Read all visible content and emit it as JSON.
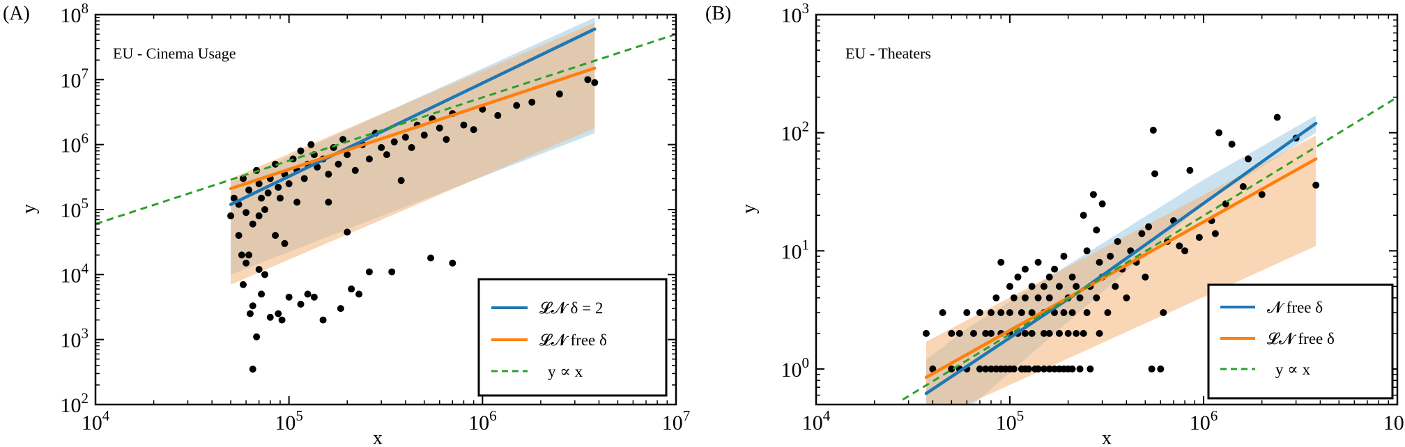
{
  "chart_data": [
    {
      "panel_label": "(A)",
      "type": "scatter",
      "annotation": "EU - Cinema Usage",
      "xlabel": "x",
      "ylabel": "y",
      "xscale": "log",
      "yscale": "log",
      "xlim": [
        10000,
        10000000
      ],
      "ylim": [
        100,
        100000000
      ],
      "xticks": [
        {
          "value": 10000,
          "base": "10",
          "exp": "4"
        },
        {
          "value": 100000,
          "base": "10",
          "exp": "5"
        },
        {
          "value": 1000000,
          "base": "10",
          "exp": "6"
        },
        {
          "value": 10000000,
          "base": "10",
          "exp": "7"
        }
      ],
      "yticks": [
        {
          "value": 100,
          "base": "10",
          "exp": "2"
        },
        {
          "value": 1000,
          "base": "10",
          "exp": "3"
        },
        {
          "value": 10000,
          "base": "10",
          "exp": "4"
        },
        {
          "value": 100000,
          "base": "10",
          "exp": "5"
        },
        {
          "value": 1000000,
          "base": "10",
          "exp": "6"
        },
        {
          "value": 10000000,
          "base": "10",
          "exp": "7"
        },
        {
          "value": 100000000,
          "base": "10",
          "exp": "8"
        }
      ],
      "legend_position": "lower-right",
      "legend": [
        {
          "label": "𝓛𝓝  δ = 2",
          "style": "solid",
          "color": "#1f77b4"
        },
        {
          "label": "𝓛𝓝 free δ",
          "style": "solid",
          "color": "#ff7f0e"
        },
        {
          "label": "y ∝ x",
          "style": "dashed",
          "color": "#2ca02c"
        }
      ],
      "colors": {
        "blue": "#1f77b4",
        "orange": "#ff7f0e",
        "green": "#2ca02c",
        "band_blue": "#9ecae1",
        "band_orange": "#f4b57a"
      },
      "lines": [
        {
          "name": "𝓛𝓝  δ = 2",
          "color": "#1f77b4",
          "dash": false,
          "x": [
            50000,
            3800000
          ],
          "y": [
            120000,
            60000000
          ]
        },
        {
          "name": "𝓛𝓝 free δ",
          "color": "#ff7f0e",
          "dash": false,
          "x": [
            50000,
            3800000
          ],
          "y": [
            210000,
            15000000
          ]
        },
        {
          "name": "y ∝ x",
          "color": "#2ca02c",
          "dash": true,
          "x": [
            10000,
            10000000
          ],
          "y": [
            60000,
            50000000
          ]
        }
      ],
      "bands": [
        {
          "color": "#9ecae1",
          "x": [
            50000,
            3800000
          ],
          "lower": [
            10000,
            1500000
          ],
          "upper": [
            260000,
            90000000
          ]
        },
        {
          "color": "#f4b57a",
          "x": [
            50000,
            3800000
          ],
          "lower": [
            7000,
            1800000
          ],
          "upper": [
            300000,
            75000000
          ]
        }
      ],
      "points": [
        [
          50000,
          80000
        ],
        [
          52000,
          150000
        ],
        [
          55000,
          120000
        ],
        [
          58000,
          300000
        ],
        [
          60000,
          90000
        ],
        [
          62000,
          200000
        ],
        [
          65000,
          60000
        ],
        [
          68000,
          400000
        ],
        [
          70000,
          250000
        ],
        [
          72000,
          150000
        ],
        [
          75000,
          100000
        ],
        [
          78000,
          180000
        ],
        [
          80000,
          300000
        ],
        [
          85000,
          500000
        ],
        [
          88000,
          220000
        ],
        [
          90000,
          150000
        ],
        [
          95000,
          350000
        ],
        [
          100000,
          250000
        ],
        [
          105000,
          600000
        ],
        [
          110000,
          400000
        ],
        [
          115000,
          800000
        ],
        [
          120000,
          300000
        ],
        [
          125000,
          500000
        ],
        [
          130000,
          1000000
        ],
        [
          135000,
          700000
        ],
        [
          140000,
          450000
        ],
        [
          150000,
          600000
        ],
        [
          160000,
          350000
        ],
        [
          170000,
          900000
        ],
        [
          180000,
          500000
        ],
        [
          190000,
          1200000
        ],
        [
          200000,
          700000
        ],
        [
          220000,
          400000
        ],
        [
          240000,
          1000000
        ],
        [
          260000,
          600000
        ],
        [
          280000,
          1500000
        ],
        [
          300000,
          900000
        ],
        [
          320000,
          700000
        ],
        [
          350000,
          1100000
        ],
        [
          380000,
          280000
        ],
        [
          400000,
          1300000
        ],
        [
          430000,
          900000
        ],
        [
          460000,
          2000000
        ],
        [
          500000,
          1400000
        ],
        [
          550000,
          2500000
        ],
        [
          600000,
          1800000
        ],
        [
          650000,
          1200000
        ],
        [
          700000,
          3000000
        ],
        [
          800000,
          2000000
        ],
        [
          900000,
          1700000
        ],
        [
          1000000,
          3500000
        ],
        [
          1200000,
          2800000
        ],
        [
          1500000,
          4000000
        ],
        [
          1800000,
          4500000
        ],
        [
          2500000,
          6000000
        ],
        [
          3500000,
          10000000
        ],
        [
          3800000,
          9000000
        ],
        [
          65000,
          350
        ],
        [
          68000,
          1100
        ],
        [
          63000,
          2500
        ],
        [
          65000,
          3300
        ],
        [
          58000,
          7000
        ],
        [
          60000,
          15000
        ],
        [
          62000,
          20000
        ],
        [
          70000,
          12000
        ],
        [
          72000,
          5000
        ],
        [
          75000,
          10000
        ],
        [
          80000,
          2200
        ],
        [
          88000,
          2500
        ],
        [
          92000,
          2000
        ],
        [
          100000,
          4500
        ],
        [
          115000,
          3500
        ],
        [
          125000,
          5000
        ],
        [
          135000,
          4500
        ],
        [
          150000,
          2000
        ],
        [
          185000,
          3000
        ],
        [
          210000,
          6000
        ],
        [
          230000,
          5000
        ],
        [
          260000,
          11000
        ],
        [
          340000,
          11000
        ],
        [
          540000,
          18000
        ],
        [
          700000,
          15000
        ],
        [
          200000,
          45000
        ],
        [
          160000,
          130000
        ],
        [
          55000,
          40000
        ],
        [
          57000,
          20000
        ],
        [
          85000,
          40000
        ],
        [
          95000,
          30000
        ],
        [
          70000,
          80000
        ],
        [
          110000,
          130000
        ]
      ]
    },
    {
      "panel_label": "(B)",
      "type": "scatter",
      "annotation": "EU - Theaters",
      "xlabel": "x",
      "ylabel": "y",
      "xscale": "log",
      "yscale": "log",
      "xlim": [
        10000,
        10000000
      ],
      "ylim": [
        0.5,
        1000
      ],
      "xticks": [
        {
          "value": 10000,
          "base": "10",
          "exp": "4"
        },
        {
          "value": 100000,
          "base": "10",
          "exp": "5"
        },
        {
          "value": 1000000,
          "base": "10",
          "exp": "6"
        },
        {
          "value": 10000000,
          "base": "10",
          "exp": "7"
        }
      ],
      "yticks": [
        {
          "value": 1,
          "base": "10",
          "exp": "0"
        },
        {
          "value": 10,
          "base": "10",
          "exp": "1"
        },
        {
          "value": 100,
          "base": "10",
          "exp": "2"
        },
        {
          "value": 1000,
          "base": "10",
          "exp": "3"
        }
      ],
      "legend_position": "lower-right",
      "legend": [
        {
          "label": "𝓝 free δ",
          "style": "solid",
          "color": "#1f77b4"
        },
        {
          "label": "𝓛𝓝 free δ",
          "style": "solid",
          "color": "#ff7f0e"
        },
        {
          "label": "y ∝ x",
          "style": "dashed",
          "color": "#2ca02c"
        }
      ],
      "colors": {
        "blue": "#1f77b4",
        "orange": "#ff7f0e",
        "green": "#2ca02c",
        "band_blue": "#9ecae1",
        "band_orange": "#f4b57a"
      },
      "lines": [
        {
          "name": "𝓝 free δ",
          "color": "#1f77b4",
          "dash": false,
          "x": [
            37000,
            250000,
            3800000
          ],
          "y": [
            0.62,
            5,
            120
          ]
        },
        {
          "name": "𝓛𝓝 free δ",
          "color": "#ff7f0e",
          "dash": false,
          "x": [
            37000,
            3800000
          ],
          "y": [
            0.85,
            60
          ]
        },
        {
          "name": "y ∝ x",
          "color": "#2ca02c",
          "dash": true,
          "x": [
            28000,
            10000000
          ],
          "y": [
            0.55,
            200
          ]
        }
      ],
      "bands": [
        {
          "color": "#9ecae1",
          "x": [
            37000,
            60000,
            1000000,
            3800000
          ],
          "lower": [
            0.3,
            0.45,
            25,
            100
          ],
          "upper": [
            1.2,
            2.2,
            40,
            140
          ]
        },
        {
          "color": "#f4b57a",
          "x": [
            37000,
            3800000
          ],
          "lower": [
            0.35,
            11
          ],
          "upper": [
            1.7,
            95
          ]
        }
      ],
      "points": [
        [
          37000,
          2
        ],
        [
          40000,
          1
        ],
        [
          45000,
          3
        ],
        [
          50000,
          1
        ],
        [
          50000,
          2
        ],
        [
          55000,
          1
        ],
        [
          55000,
          2
        ],
        [
          60000,
          1
        ],
        [
          60000,
          3
        ],
        [
          65000,
          2
        ],
        [
          70000,
          1
        ],
        [
          70000,
          3
        ],
        [
          75000,
          1
        ],
        [
          75000,
          2
        ],
        [
          80000,
          1
        ],
        [
          80000,
          2
        ],
        [
          80000,
          3
        ],
        [
          85000,
          1
        ],
        [
          85000,
          4
        ],
        [
          90000,
          1
        ],
        [
          90000,
          2
        ],
        [
          90000,
          3
        ],
        [
          90000,
          8
        ],
        [
          95000,
          1
        ],
        [
          100000,
          1
        ],
        [
          100000,
          2
        ],
        [
          100000,
          3
        ],
        [
          100000,
          5
        ],
        [
          105000,
          1
        ],
        [
          105000,
          4
        ],
        [
          110000,
          2
        ],
        [
          110000,
          6
        ],
        [
          115000,
          1
        ],
        [
          115000,
          3
        ],
        [
          120000,
          1
        ],
        [
          120000,
          2
        ],
        [
          120000,
          4
        ],
        [
          120000,
          7
        ],
        [
          125000,
          1
        ],
        [
          130000,
          2
        ],
        [
          130000,
          3
        ],
        [
          130000,
          5
        ],
        [
          135000,
          1
        ],
        [
          140000,
          1
        ],
        [
          140000,
          4
        ],
        [
          140000,
          8
        ],
        [
          150000,
          1
        ],
        [
          150000,
          2
        ],
        [
          150000,
          3
        ],
        [
          150000,
          5
        ],
        [
          160000,
          1
        ],
        [
          160000,
          2
        ],
        [
          160000,
          4
        ],
        [
          160000,
          6
        ],
        [
          170000,
          1
        ],
        [
          170000,
          3
        ],
        [
          170000,
          7
        ],
        [
          180000,
          1
        ],
        [
          180000,
          2
        ],
        [
          180000,
          5
        ],
        [
          190000,
          1
        ],
        [
          190000,
          3
        ],
        [
          190000,
          9
        ],
        [
          200000,
          1
        ],
        [
          200000,
          2
        ],
        [
          200000,
          4
        ],
        [
          210000,
          1
        ],
        [
          210000,
          3
        ],
        [
          210000,
          6
        ],
        [
          220000,
          2
        ],
        [
          220000,
          5
        ],
        [
          230000,
          1
        ],
        [
          230000,
          4
        ],
        [
          240000,
          2
        ],
        [
          240000,
          20
        ],
        [
          250000,
          3
        ],
        [
          250000,
          10
        ],
        [
          260000,
          1
        ],
        [
          260000,
          5
        ],
        [
          270000,
          30
        ],
        [
          280000,
          4
        ],
        [
          280000,
          15
        ],
        [
          290000,
          2
        ],
        [
          290000,
          8
        ],
        [
          300000,
          6
        ],
        [
          300000,
          25
        ],
        [
          320000,
          3
        ],
        [
          330000,
          9
        ],
        [
          350000,
          5
        ],
        [
          360000,
          12
        ],
        [
          380000,
          7
        ],
        [
          400000,
          4
        ],
        [
          420000,
          10
        ],
        [
          450000,
          8
        ],
        [
          480000,
          14
        ],
        [
          500000,
          6
        ],
        [
          520000,
          16
        ],
        [
          540000,
          1
        ],
        [
          550000,
          105
        ],
        [
          560000,
          45
        ],
        [
          600000,
          1
        ],
        [
          620000,
          3
        ],
        [
          650000,
          12
        ],
        [
          700000,
          18
        ],
        [
          750000,
          11
        ],
        [
          800000,
          10
        ],
        [
          850000,
          48
        ],
        [
          950000,
          13
        ],
        [
          1100000,
          18
        ],
        [
          1150000,
          14
        ],
        [
          1200000,
          100
        ],
        [
          1300000,
          25
        ],
        [
          1400000,
          80
        ],
        [
          1600000,
          35
        ],
        [
          1700000,
          60
        ],
        [
          2000000,
          30
        ],
        [
          2400000,
          135
        ],
        [
          3000000,
          90
        ],
        [
          3800000,
          36
        ]
      ]
    }
  ]
}
